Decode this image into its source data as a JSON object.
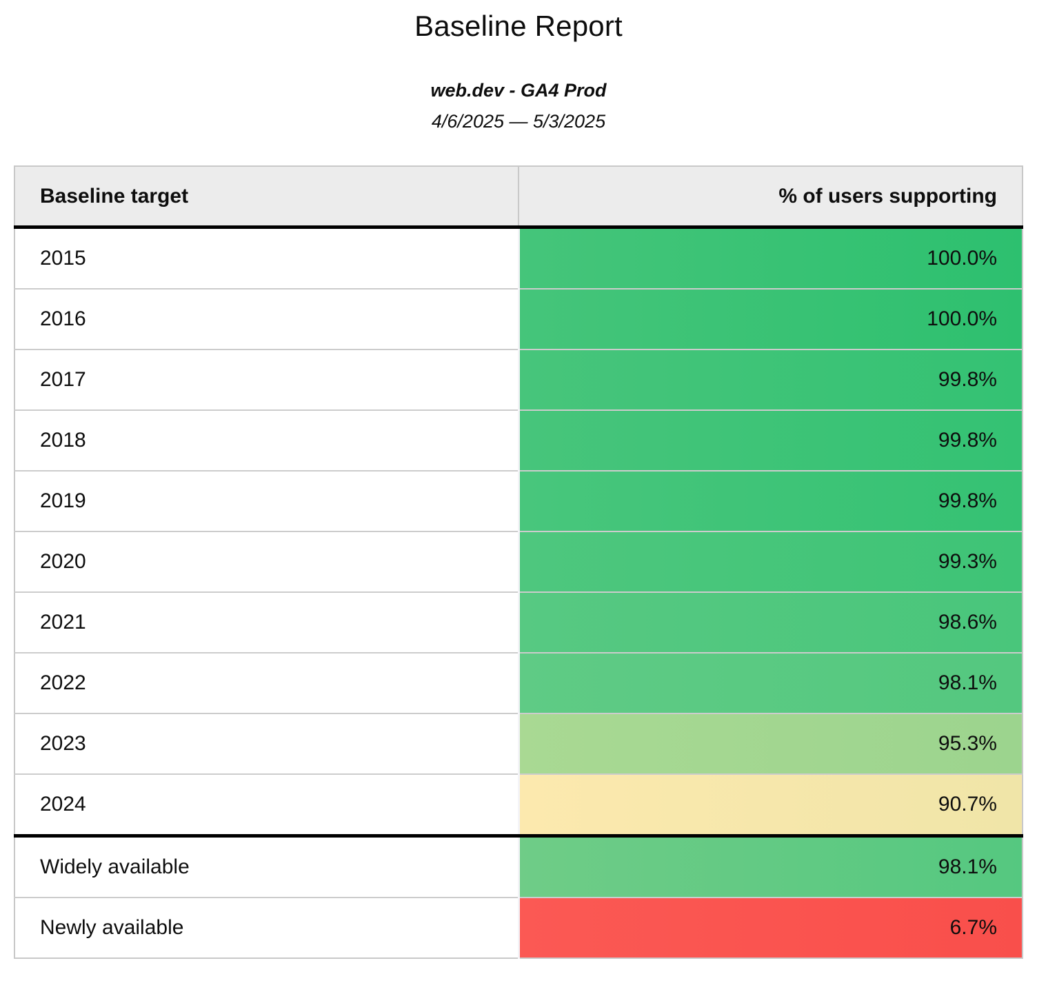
{
  "page": {
    "title": "Baseline Report",
    "subtitle": "web.dev - GA4 Prod",
    "date_range": "4/6/2025 — 5/3/2025"
  },
  "table": {
    "columns": [
      {
        "label": "Baseline target"
      },
      {
        "label": "% of users supporting"
      }
    ],
    "rows": [
      {
        "target": "2015",
        "value": "100.0%",
        "color_left": "#45c57a",
        "color_right": "#2dc06f",
        "thick_bottom_border": false
      },
      {
        "target": "2016",
        "value": "100.0%",
        "color_left": "#45c57a",
        "color_right": "#2ec06f",
        "thick_bottom_border": false
      },
      {
        "target": "2017",
        "value": "99.8%",
        "color_left": "#47c57b",
        "color_right": "#34c273",
        "thick_bottom_border": false
      },
      {
        "target": "2018",
        "value": "99.8%",
        "color_left": "#47c57b",
        "color_right": "#34c273",
        "thick_bottom_border": false
      },
      {
        "target": "2019",
        "value": "99.8%",
        "color_left": "#48c67c",
        "color_right": "#35c273",
        "thick_bottom_border": false
      },
      {
        "target": "2020",
        "value": "99.3%",
        "color_left": "#4ec77e",
        "color_right": "#3ec476",
        "thick_bottom_border": false
      },
      {
        "target": "2021",
        "value": "98.6%",
        "color_left": "#57c982",
        "color_right": "#49c67b",
        "thick_bottom_border": false
      },
      {
        "target": "2022",
        "value": "98.1%",
        "color_left": "#5fcb85",
        "color_right": "#54c87f",
        "thick_bottom_border": false
      },
      {
        "target": "2023",
        "value": "95.3%",
        "color_left": "#a9d993",
        "color_right": "#9cd48e",
        "thick_bottom_border": false
      },
      {
        "target": "2024",
        "value": "90.7%",
        "color_left": "#fce9ae",
        "color_right": "#f0e5a8",
        "thick_bottom_border": true
      },
      {
        "target": "Widely available",
        "value": "98.1%",
        "color_left": "#6fcc87",
        "color_right": "#55c880",
        "thick_bottom_border": false
      },
      {
        "target": "Newly available",
        "value": "6.7%",
        "color_left": "#fb5954",
        "color_right": "#f94f4b",
        "thick_bottom_border": false
      }
    ]
  },
  "colors": {
    "header_background": "#ececec",
    "row_divider": "#cccccc",
    "section_divider": "#000000",
    "text": "#0d0d0d",
    "scale_high_green": "#2ec06f",
    "scale_mid_yellow": "#f0e5a8",
    "scale_low_red": "#f94f4b"
  },
  "chart_data": {
    "type": "table",
    "title": "Baseline Report",
    "subtitle": "web.dev - GA4 Prod",
    "date_range": "4/6/2025 — 5/3/2025",
    "columns": [
      "Baseline target",
      "% of users supporting"
    ],
    "categories": [
      "2015",
      "2016",
      "2017",
      "2018",
      "2019",
      "2020",
      "2021",
      "2022",
      "2023",
      "2024",
      "Widely available",
      "Newly available"
    ],
    "values": [
      100.0,
      100.0,
      99.8,
      99.8,
      99.8,
      99.3,
      98.6,
      98.1,
      95.3,
      90.7,
      98.1,
      6.7
    ],
    "value_unit": "%",
    "layout_hints": {
      "value_cells_colored": "red-yellow-green scale by value",
      "thick_divider_after": [
        "header",
        "2024"
      ],
      "value_column_alignment": "right"
    }
  }
}
